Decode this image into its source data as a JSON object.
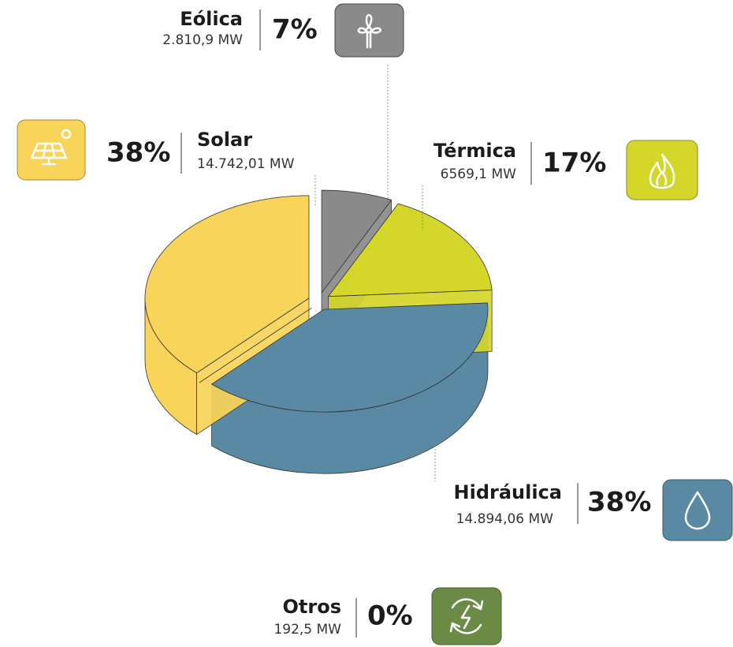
{
  "chart_data": {
    "type": "pie",
    "categories": [
      "Eólica",
      "Térmica",
      "Hidráulica",
      "Otros",
      "Solar"
    ],
    "values": [
      7,
      17,
      38,
      0,
      38
    ],
    "value_labels": [
      "7%",
      "17%",
      "38%",
      "0%",
      "38%"
    ],
    "details": [
      "2.810,9 MW",
      "6569,1 MW",
      "14.894,06 MW",
      "192,5 MW",
      "14.742,01 MW"
    ],
    "colors": [
      "#8a8a8a",
      "#d4d62a",
      "#5a8aa3",
      "#6b8a45",
      "#f9d45a"
    ]
  }
}
